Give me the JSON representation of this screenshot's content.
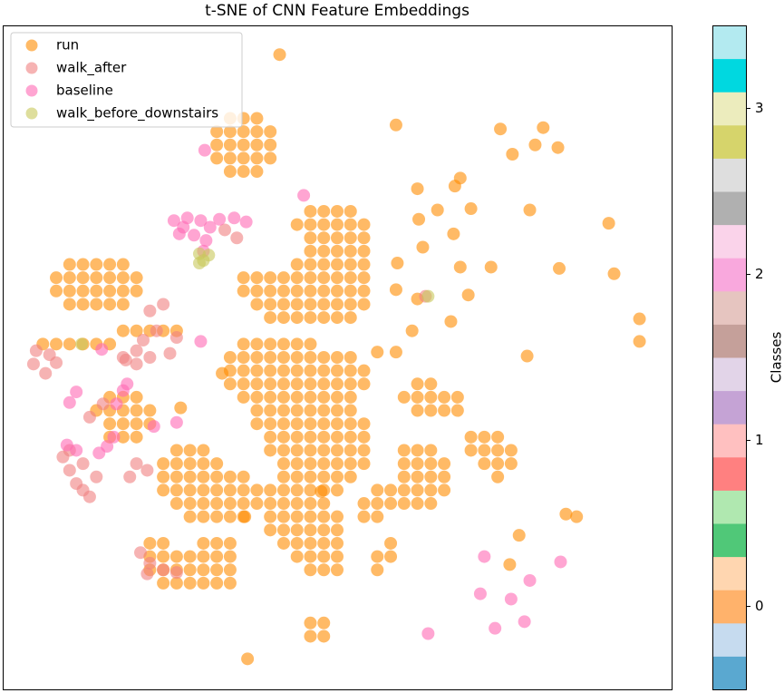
{
  "chart_data": {
    "type": "scatter",
    "title": "t-SNE of CNN Feature Embeddings",
    "xlim": [
      0,
      50
    ],
    "ylim": [
      0,
      50
    ],
    "legend": "upper left",
    "alpha": 0.6,
    "series": [
      {
        "name": "run",
        "color": "#ff8c00",
        "x": [
          17,
          18,
          19,
          16,
          17,
          18,
          19,
          20,
          16,
          17,
          18,
          19,
          20,
          16,
          17,
          18,
          19,
          20,
          17,
          18,
          19,
          5,
          6,
          7,
          8,
          9,
          4,
          5,
          6,
          7,
          8,
          9,
          10,
          4,
          5,
          6,
          7,
          8,
          9,
          10,
          5,
          6,
          7,
          8,
          9,
          23,
          24,
          25,
          26,
          22,
          23,
          24,
          25,
          26,
          27,
          23,
          24,
          25,
          26,
          27,
          23,
          24,
          25,
          26,
          27,
          22,
          23,
          24,
          25,
          26,
          27,
          18,
          19,
          20,
          21,
          22,
          23,
          24,
          25,
          26,
          27,
          18,
          19,
          20,
          21,
          22,
          23,
          24,
          25,
          26,
          27,
          19,
          20,
          21,
          22,
          23,
          24,
          25,
          26,
          27,
          20,
          21,
          22,
          23,
          24,
          25,
          26,
          18,
          19,
          20,
          21,
          22,
          23,
          17,
          18,
          19,
          20,
          21,
          22,
          23,
          24,
          25,
          26,
          17,
          18,
          19,
          20,
          21,
          22,
          23,
          24,
          25,
          26,
          27,
          17,
          18,
          19,
          20,
          21,
          22,
          23,
          24,
          25,
          26,
          27,
          18,
          19,
          20,
          21,
          22,
          23,
          24,
          25,
          26,
          19,
          20,
          21,
          22,
          23,
          24,
          25,
          26,
          19,
          20,
          21,
          22,
          23,
          24,
          25,
          26,
          27,
          20,
          21,
          22,
          23,
          24,
          25,
          26,
          27,
          20,
          21,
          22,
          23,
          24,
          25,
          26,
          27,
          21,
          22,
          23,
          24,
          25,
          26,
          27,
          21,
          22,
          23,
          24,
          25,
          26,
          20,
          21,
          22,
          23,
          24,
          25,
          20,
          21,
          22,
          23,
          24,
          20,
          21,
          22,
          23,
          24,
          25,
          20,
          21,
          22,
          23,
          24,
          25,
          21,
          22,
          23,
          24,
          25,
          22,
          23,
          24,
          25,
          23,
          24,
          25,
          13,
          14,
          15,
          12,
          13,
          14,
          15,
          16,
          12,
          13,
          14,
          15,
          16,
          17,
          18,
          12,
          13,
          14,
          15,
          16,
          17,
          18,
          19,
          13,
          14,
          15,
          16,
          17,
          18,
          19,
          14,
          15,
          16,
          17,
          18,
          11,
          12,
          15,
          16,
          17,
          11,
          12,
          13,
          14,
          15,
          16,
          17,
          11,
          12,
          13,
          14,
          15,
          16,
          17,
          12,
          13,
          14,
          15,
          16,
          17,
          30,
          31,
          32,
          30,
          31,
          32,
          33,
          30,
          31,
          32,
          33,
          30,
          31,
          32,
          33,
          30,
          31,
          32,
          35,
          36,
          37,
          35,
          36,
          37,
          38,
          36,
          37,
          38,
          37,
          31,
          32,
          30,
          31,
          32,
          33,
          34,
          31,
          32,
          33,
          34,
          28,
          29,
          27,
          28,
          29,
          27,
          28,
          29,
          28,
          29,
          28,
          23,
          24,
          23,
          24,
          9,
          10,
          11,
          12,
          13,
          3,
          4,
          5,
          6,
          7,
          8,
          8,
          9,
          10,
          7,
          8,
          9,
          10,
          11,
          8,
          9,
          10,
          11,
          8,
          9,
          10,
          20.7,
          29.4,
          37.2,
          40.4,
          39.8,
          41.5,
          38.1,
          39.4,
          34.2,
          33.8,
          31.0,
          31.1,
          32.5,
          35.0,
          31.4,
          33.7,
          34.2,
          36.5,
          41.6,
          45.3,
          45.7,
          47.6,
          47.6,
          39.2,
          34.8,
          29.5,
          29.4,
          31.0,
          33.5,
          30.6,
          28.0,
          29.4,
          42.1,
          42.9,
          18.3,
          18.1,
          38.6,
          37.9,
          16.4,
          13.3,
          23.8
        ],
        "values": [
          43,
          43,
          43,
          42,
          42,
          42,
          42,
          42,
          41,
          41,
          41,
          41,
          41,
          40,
          40,
          40,
          40,
          40,
          39,
          39,
          39,
          32,
          32,
          32,
          32,
          32,
          31,
          31,
          31,
          31,
          31,
          31,
          31,
          30,
          30,
          30,
          30,
          30,
          30,
          30,
          29,
          29,
          29,
          29,
          29,
          36,
          36,
          36,
          36,
          35,
          35,
          35,
          35,
          35,
          35,
          34,
          34,
          34,
          34,
          34,
          33,
          33,
          33,
          33,
          33,
          32,
          32,
          32,
          32,
          32,
          32,
          31,
          31,
          31,
          31,
          31,
          31,
          31,
          31,
          31,
          31,
          30,
          30,
          30,
          30,
          30,
          30,
          30,
          30,
          30,
          30,
          29,
          29,
          29,
          29,
          29,
          29,
          29,
          29,
          29,
          28,
          28,
          28,
          28,
          28,
          28,
          28,
          26,
          26,
          26,
          26,
          26,
          26,
          25,
          25,
          25,
          25,
          25,
          25,
          25,
          25,
          25,
          25,
          24,
          24,
          24,
          24,
          24,
          24,
          24,
          24,
          24,
          24,
          24,
          23,
          23,
          23,
          23,
          23,
          23,
          23,
          23,
          23,
          23,
          23,
          22,
          22,
          22,
          22,
          22,
          22,
          22,
          22,
          22,
          21,
          21,
          21,
          21,
          21,
          21,
          21,
          21,
          20,
          20,
          20,
          20,
          20,
          20,
          20,
          20,
          20,
          19,
          19,
          19,
          19,
          19,
          19,
          19,
          19,
          18,
          18,
          18,
          18,
          18,
          18,
          18,
          18,
          17,
          17,
          17,
          17,
          17,
          17,
          17,
          16,
          16,
          16,
          16,
          16,
          16,
          15,
          15,
          15,
          15,
          15,
          15,
          14,
          14,
          14,
          14,
          14,
          13,
          13,
          13,
          13,
          13,
          13,
          12,
          12,
          12,
          12,
          12,
          12,
          11,
          11,
          11,
          11,
          11,
          10,
          10,
          10,
          10,
          9,
          9,
          9,
          18,
          18,
          18,
          17,
          17,
          17,
          17,
          17,
          16,
          16,
          16,
          16,
          16,
          16,
          16,
          15,
          15,
          15,
          15,
          15,
          15,
          15,
          15,
          14,
          14,
          14,
          14,
          14,
          14,
          14,
          13,
          13,
          13,
          13,
          13,
          11,
          11,
          11,
          11,
          11,
          10,
          10,
          10,
          10,
          10,
          10,
          10,
          9,
          9,
          9,
          9,
          9,
          9,
          9,
          8,
          8,
          8,
          8,
          8,
          8,
          18,
          18,
          18,
          17,
          17,
          17,
          17,
          16,
          16,
          16,
          16,
          15,
          15,
          15,
          15,
          14,
          14,
          14,
          19,
          19,
          19,
          18,
          18,
          18,
          18,
          17,
          17,
          17,
          16,
          23,
          23,
          22,
          22,
          22,
          22,
          22,
          21,
          21,
          21,
          21,
          15,
          15,
          14,
          14,
          14,
          13,
          13,
          11,
          10,
          10,
          9,
          5,
          5,
          4,
          4,
          27,
          27,
          27,
          27,
          27,
          26,
          26,
          26,
          26,
          26,
          26,
          22,
          22,
          22,
          21,
          21,
          21,
          21,
          21,
          20,
          20,
          20,
          20,
          19,
          19,
          19,
          47.8,
          42.5,
          42.2,
          42.3,
          41.0,
          40.8,
          40.3,
          36.1,
          38.5,
          37.9,
          37.7,
          35.4,
          36.1,
          36.2,
          33.3,
          34.3,
          31.8,
          31.8,
          31.7,
          35.1,
          31.3,
          27.9,
          26.2,
          25.1,
          29.7,
          32.1,
          30.1,
          29.4,
          27.7,
          27.0,
          25.4,
          25.4,
          13.2,
          13.0,
          2.3,
          13.0,
          11.6,
          9.4,
          23.8,
          21.2,
          14.9
        ]
      },
      {
        "name": "walk_after",
        "color": "#f08080",
        "x": [
          2.5,
          2.3,
          3.2,
          4.0,
          3.5,
          9.0,
          10.0,
          11.0,
          10.5,
          11.5,
          11.0,
          12.0,
          10.0,
          9.2,
          4.5,
          5.0,
          5.5,
          6.0,
          6.5,
          5.0,
          6.0,
          7.0,
          10.0,
          10.8,
          9.5,
          10.3,
          11.0,
          12.0,
          13.0,
          10.8,
          6.5,
          7.5,
          16.6,
          17.5,
          31.6,
          13.0,
          12.5
        ],
        "values": [
          25.5,
          24.5,
          23.8,
          24.6,
          25.2,
          25.0,
          25.5,
          25.0,
          26.3,
          27.0,
          28.5,
          29.0,
          24.5,
          24.8,
          17.5,
          16.5,
          15.5,
          15.0,
          14.5,
          18.0,
          17.0,
          16.0,
          17.0,
          16.5,
          16.0,
          10.3,
          9.5,
          9.0,
          8.8,
          8.7,
          20.5,
          21.5,
          34.6,
          34.0,
          29.6,
          26.5,
          25.3
        ]
      },
      {
        "name": "baseline",
        "color": "#ff69b4",
        "x": [
          12.8,
          13.8,
          14.8,
          15.5,
          16.2,
          17.3,
          18.2,
          13.2,
          14.3,
          15.2,
          15.0,
          13.5,
          4.8,
          5.5,
          5.0,
          5.5,
          8.5,
          9.0,
          7.8,
          8.3,
          7.2,
          36.0,
          35.7,
          38.0,
          39.4,
          41.7,
          39.0,
          36.8,
          31.8,
          15.1,
          22.5,
          14.8,
          9.3,
          7.4,
          13.0,
          11.3
        ],
        "values": [
          35.3,
          35.5,
          35.3,
          34.8,
          35.4,
          35.5,
          35.2,
          34.3,
          34.2,
          33.8,
          33.0,
          34.8,
          18.4,
          18.0,
          21.6,
          22.4,
          21.5,
          22.5,
          18.3,
          19.0,
          17.8,
          10.0,
          7.2,
          6.8,
          8.2,
          9.6,
          5.1,
          4.6,
          4.2,
          40.6,
          37.2,
          26.2,
          23.0,
          25.6,
          20.1,
          19.8
        ]
      },
      {
        "name": "walk_before_downstairs",
        "color": "#c8c85a",
        "x": [
          14.7,
          15.0,
          15.4,
          14.7,
          5.9,
          31.8
        ],
        "values": [
          32.8,
          32.3,
          32.7,
          32.1,
          26.0,
          29.6
        ]
      }
    ],
    "colorbar": {
      "label": "Classes",
      "lim": [
        -0.5,
        3.5
      ],
      "ticks": [
        0,
        1,
        2,
        3
      ],
      "colors": [
        "#5aa8d0",
        "#c6dbef",
        "#ffb26b",
        "#ffd6b0",
        "#50c878",
        "#b0e8b0",
        "#ff8080",
        "#ffc0c0",
        "#c5a3d5",
        "#e2d4e8",
        "#c5a09a",
        "#e6c5c0",
        "#f9a8dd",
        "#fad3ea",
        "#b0b0b0",
        "#dedede",
        "#d6d46b",
        "#ececbd",
        "#00d8e0",
        "#b3eaf0"
      ]
    }
  }
}
